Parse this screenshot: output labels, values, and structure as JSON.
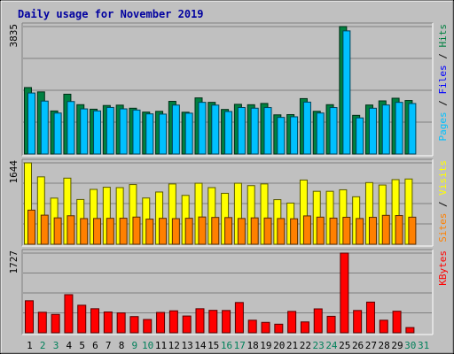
{
  "chart_data": {
    "type": "bar",
    "title": "Daily usage for November 2019",
    "categories": [
      "1",
      "2",
      "3",
      "4",
      "5",
      "6",
      "7",
      "8",
      "9",
      "10",
      "11",
      "12",
      "13",
      "14",
      "15",
      "16",
      "17",
      "18",
      "19",
      "20",
      "21",
      "22",
      "23",
      "24",
      "25",
      "26",
      "27",
      "28",
      "29",
      "30",
      "31"
    ],
    "weekend_days": [
      "2",
      "3",
      "9",
      "10",
      "16",
      "17",
      "23",
      "24",
      "30",
      "31"
    ],
    "panels": [
      {
        "id": "hits-files-pages",
        "max_label": "3835",
        "ylim": [
          0,
          3835
        ],
        "side_labels": [
          "Pages",
          "Files",
          "Hits"
        ],
        "series": [
          {
            "name": "Hits",
            "color": "#008040",
            "values": [
              1999,
              1869,
              1295,
              1799,
              1484,
              1348,
              1459,
              1470,
              1377,
              1261,
              1283,
              1584,
              1257,
              1688,
              1554,
              1340,
              1495,
              1482,
              1521,
              1178,
              1185,
              1667,
              1284,
              1484,
              3835,
              1163,
              1474,
              1598,
              1678,
              1610,
              0
            ]
          },
          {
            "name": "Files",
            "color": "#00c0ff",
            "values": [
              1835,
              1592,
              1232,
              1578,
              1357,
              1297,
              1400,
              1358,
              1323,
              1207,
              1200,
              1472,
              1228,
              1554,
              1471,
              1278,
              1398,
              1378,
              1397,
              1101,
              1119,
              1561,
              1233,
              1397,
              3705,
              1086,
              1377,
              1475,
              1553,
              1519,
              0
            ]
          },
          {
            "name": "Pages",
            "color": "#00c0ff",
            "values": [
              0,
              0,
              0,
              0,
              0,
              0,
              0,
              0,
              0,
              0,
              0,
              0,
              0,
              0,
              0,
              0,
              0,
              0,
              0,
              0,
              0,
              0,
              0,
              0,
              0,
              0,
              0,
              0,
              0,
              0,
              0
            ]
          }
        ]
      },
      {
        "id": "visits-sites",
        "max_label": "1644",
        "ylim": [
          0,
          1644
        ],
        "side_labels": [
          "Sites",
          "Visits"
        ],
        "series": [
          {
            "name": "Visits",
            "color": "#ffff00",
            "values": [
              1644,
              1361,
              932,
              1335,
              904,
              1108,
              1151,
              1144,
              1205,
              934,
              1055,
              1217,
              987,
              1232,
              1144,
              1029,
              1232,
              1184,
              1218,
              901,
              832,
              1297,
              1069,
              1069,
              1100,
              959,
              1245,
              1196,
              1305,
              1318,
              0
            ]
          },
          {
            "name": "Sites",
            "color": "#ff8000",
            "values": [
              689,
              588,
              533,
              576,
              519,
              521,
              524,
              526,
              549,
              508,
              524,
              518,
              525,
              551,
              542,
              539,
              521,
              533,
              530,
              520,
              515,
              573,
              548,
              528,
              545,
              520,
              544,
              584,
              580,
              547,
              0
            ]
          }
        ]
      },
      {
        "id": "kbytes",
        "max_label": "1727",
        "ylim": [
          0,
          1727
        ],
        "side_labels": [
          "KBytes"
        ],
        "series": [
          {
            "name": "KBytes",
            "color": "#ff0000",
            "values": [
              694,
              445,
              398,
              826,
              597,
              521,
              451,
              431,
              351,
              288,
              441,
              476,
              363,
              521,
              486,
              483,
              656,
              272,
              225,
              186,
              463,
              235,
              518,
              357,
              1727,
              483,
              665,
              272,
              467,
              113,
              0
            ]
          }
        ]
      }
    ]
  }
}
